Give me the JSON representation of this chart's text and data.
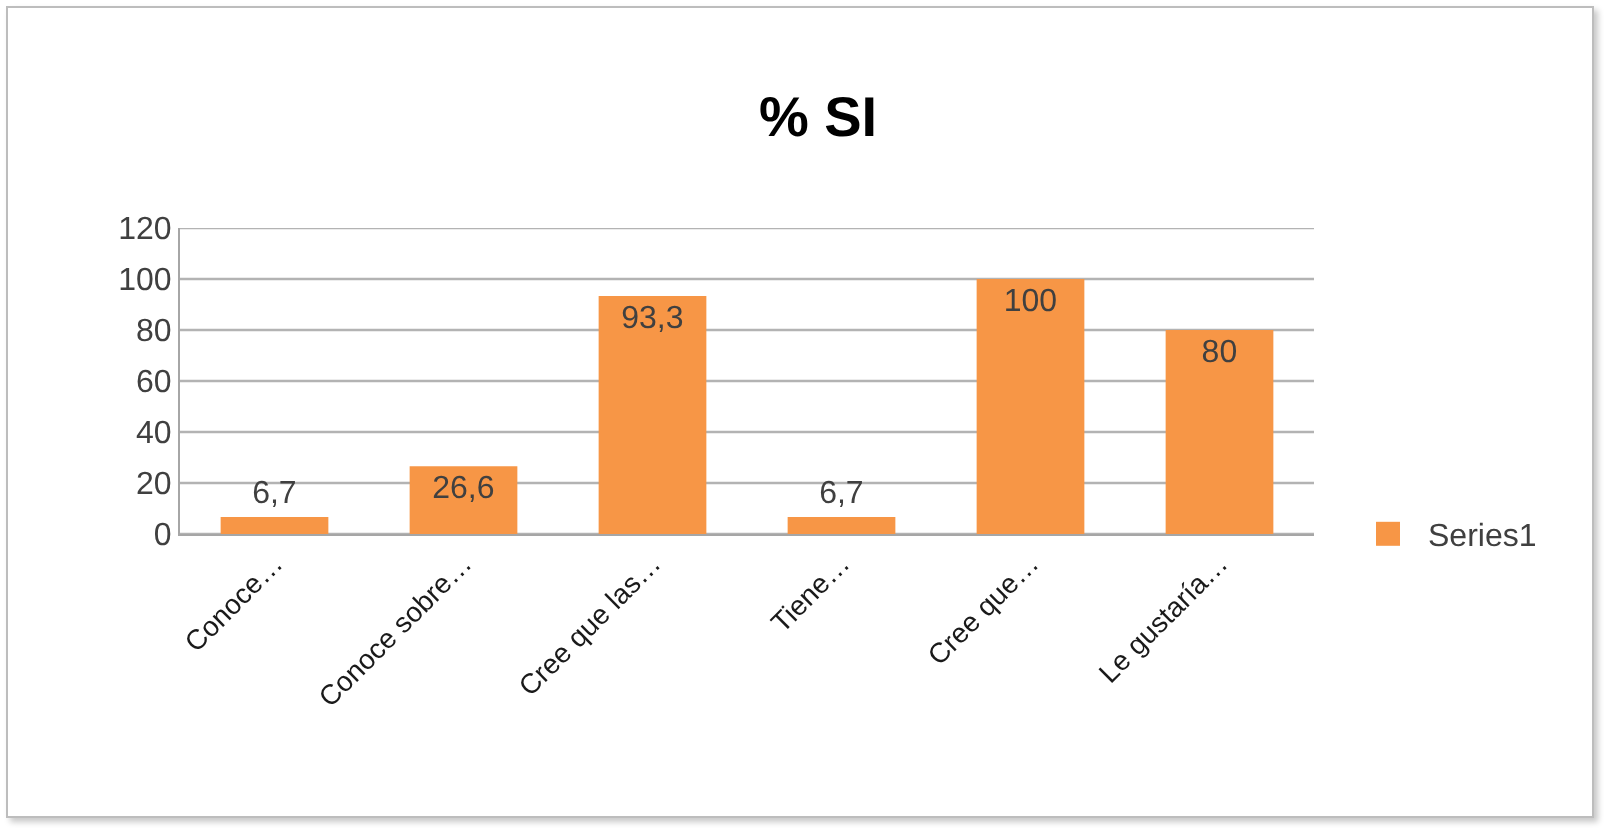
{
  "chart_data": {
    "type": "bar",
    "title": "% SI",
    "categories": [
      "Conoce…",
      "Conoce sobre…",
      "Cree que las…",
      "Tiene…",
      "Cree que…",
      "Le gustaría…"
    ],
    "series": [
      {
        "name": "Series1",
        "color": "#f79646",
        "values": [
          6.7,
          26.6,
          93.3,
          6.7,
          100,
          80
        ],
        "value_labels": [
          "6,7",
          "26,6",
          "93,3",
          "6,7",
          "100",
          "80"
        ]
      }
    ],
    "ylim": [
      0,
      120
    ],
    "yticks": [
      0,
      20,
      40,
      60,
      80,
      100,
      120
    ],
    "grid": "y",
    "legend": "right"
  }
}
